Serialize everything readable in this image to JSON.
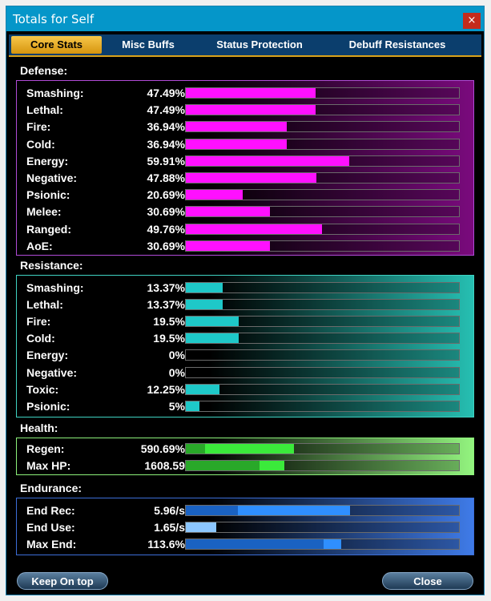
{
  "window": {
    "title": "Totals for Self",
    "close_glyph": "×"
  },
  "tabs": [
    {
      "label": "Core Stats",
      "active": true
    },
    {
      "label": "Misc Buffs",
      "active": false
    },
    {
      "label": "Status Protection",
      "active": false
    },
    {
      "label": "Debuff Resistances",
      "active": false
    }
  ],
  "defense": {
    "label": "Defense:",
    "rows": [
      {
        "name": "Smashing:",
        "value": "47.49%",
        "fill": 0.475
      },
      {
        "name": "Lethal:",
        "value": "47.49%",
        "fill": 0.475
      },
      {
        "name": "Fire:",
        "value": "36.94%",
        "fill": 0.369
      },
      {
        "name": "Cold:",
        "value": "36.94%",
        "fill": 0.369
      },
      {
        "name": "Energy:",
        "value": "59.91%",
        "fill": 0.599
      },
      {
        "name": "Negative:",
        "value": "47.88%",
        "fill": 0.479
      },
      {
        "name": "Psionic:",
        "value": "20.69%",
        "fill": 0.207
      },
      {
        "name": "Melee:",
        "value": "30.69%",
        "fill": 0.307
      },
      {
        "name": "Ranged:",
        "value": "49.76%",
        "fill": 0.498
      },
      {
        "name": "AoE:",
        "value": "30.69%",
        "fill": 0.307
      }
    ]
  },
  "resistance": {
    "label": "Resistance:",
    "rows": [
      {
        "name": "Smashing:",
        "value": "13.37%",
        "fill": 0.134
      },
      {
        "name": "Lethal:",
        "value": "13.37%",
        "fill": 0.134
      },
      {
        "name": "Fire:",
        "value": "19.5%",
        "fill": 0.195
      },
      {
        "name": "Cold:",
        "value": "19.5%",
        "fill": 0.195
      },
      {
        "name": "Energy:",
        "value": "0%",
        "fill": 0
      },
      {
        "name": "Negative:",
        "value": "0%",
        "fill": 0
      },
      {
        "name": "Toxic:",
        "value": "12.25%",
        "fill": 0.1225
      },
      {
        "name": "Psionic:",
        "value": "5%",
        "fill": 0.05
      }
    ]
  },
  "health": {
    "label": "Health:",
    "rows": [
      {
        "name": "Regen:",
        "value": "590.69%",
        "base": 0.07,
        "fill": 0.395
      },
      {
        "name": "Max HP:",
        "value": "1608.59",
        "base": 0.27,
        "fill": 0.36
      }
    ]
  },
  "endurance": {
    "label": "Endurance:",
    "rows": [
      {
        "name": "End Rec:",
        "value": "5.96/s",
        "base": 0.19,
        "fill": 0.6
      },
      {
        "name": "End Use:",
        "value": "1.65/s",
        "base": 0,
        "fill": 0.11
      },
      {
        "name": "Max End:",
        "value": "113.6%",
        "base": 0.505,
        "fill": 0.57
      }
    ]
  },
  "buttons": {
    "keep_on_top": "Keep On top",
    "close": "Close"
  },
  "colors": {
    "defense_fill": "#ff10ff",
    "resist_fill": "#1ec8c8",
    "health_dark": "#29a829",
    "health_bright": "#3bea3b",
    "end_dark": "#1a62c2",
    "end_bright": "#2f8fff",
    "end_light": "#8cc7ff"
  }
}
